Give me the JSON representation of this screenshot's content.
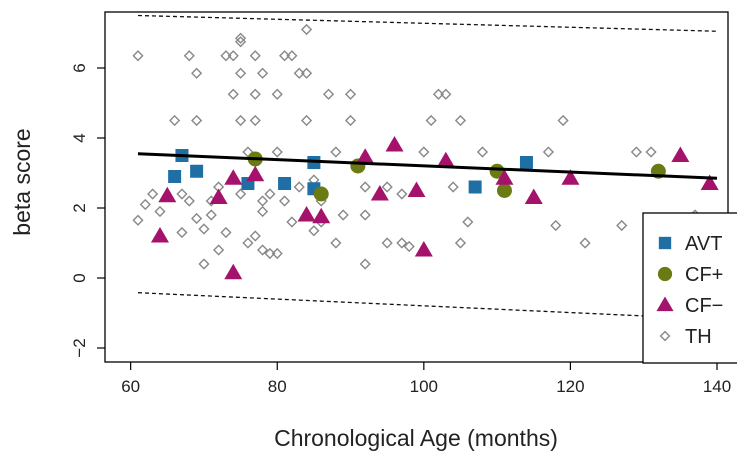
{
  "chart_data": {
    "type": "scatter",
    "xlabel": "Chronological Age (months)",
    "ylabel": "beta score",
    "xlim": [
      56.5,
      141.5
    ],
    "ylim": [
      -2.4,
      7.6
    ],
    "xticks": [
      60,
      80,
      100,
      120,
      140
    ],
    "yticks": [
      -2,
      0,
      2,
      4,
      6
    ],
    "legend_position": "bottom-right",
    "fit_line": {
      "x": [
        61,
        140
      ],
      "y": [
        3.55,
        2.85
      ]
    },
    "bound_upper": {
      "x": [
        61,
        140
      ],
      "y": [
        7.5,
        7.05
      ]
    },
    "bound_lower": {
      "x": [
        61,
        140
      ],
      "y": [
        -0.42,
        -1.18
      ]
    },
    "colors": {
      "AVT": "#1f6fa5",
      "CF+": "#6b7a12",
      "CF-": "#a5126b",
      "TH": "#888888"
    },
    "series": [
      {
        "name": "AVT",
        "marker": "square",
        "x": [
          66,
          67,
          69,
          76,
          81,
          85,
          85,
          107,
          114
        ],
        "y": [
          2.9,
          3.5,
          3.05,
          2.7,
          2.7,
          3.3,
          2.55,
          2.6,
          3.3
        ]
      },
      {
        "name": "CF+",
        "marker": "circle",
        "x": [
          77,
          86,
          91,
          110,
          111,
          132
        ],
        "y": [
          3.4,
          2.4,
          3.2,
          3.05,
          2.5,
          3.05
        ]
      },
      {
        "name": "CF−",
        "marker": "triangle",
        "x": [
          64,
          65,
          72,
          74,
          74,
          77,
          84,
          86,
          92,
          94,
          96,
          99,
          100,
          103,
          111,
          115,
          120,
          135,
          139
        ],
        "y": [
          1.2,
          2.35,
          2.3,
          2.85,
          0.15,
          2.95,
          1.8,
          1.75,
          3.45,
          2.4,
          3.8,
          2.5,
          0.8,
          3.35,
          2.85,
          2.3,
          2.85,
          3.5,
          2.7
        ]
      },
      {
        "name": "TH",
        "marker": "diamond",
        "x": [
          61,
          61,
          62,
          63,
          64,
          66,
          67,
          67,
          68,
          68,
          69,
          69,
          69,
          70,
          70,
          71,
          71,
          72,
          72,
          73,
          73,
          74,
          74,
          75,
          75,
          75,
          75,
          75,
          76,
          76,
          77,
          77,
          77,
          77,
          78,
          78,
          78,
          78,
          79,
          79,
          80,
          80,
          80,
          81,
          81,
          82,
          82,
          83,
          83,
          84,
          84,
          84,
          85,
          85,
          86,
          86,
          87,
          88,
          88,
          89,
          90,
          90,
          92,
          92,
          92,
          95,
          95,
          97,
          97,
          98,
          100,
          101,
          102,
          103,
          104,
          105,
          105,
          106,
          108,
          117,
          118,
          119,
          122,
          127,
          129,
          131,
          137
        ],
        "y": [
          6.35,
          1.65,
          2.1,
          2.4,
          1.9,
          4.5,
          2.4,
          1.3,
          2.2,
          6.35,
          1.7,
          4.5,
          5.85,
          1.4,
          0.4,
          1.8,
          2.2,
          0.8,
          2.6,
          6.35,
          1.3,
          6.35,
          5.25,
          6.85,
          6.75,
          5.85,
          4.5,
          2.4,
          3.6,
          1.0,
          6.35,
          5.25,
          4.5,
          1.2,
          2.2,
          5.85,
          1.9,
          0.8,
          2.4,
          0.7,
          3.6,
          5.25,
          0.7,
          2.2,
          6.35,
          6.35,
          1.6,
          5.85,
          2.6,
          7.1,
          5.85,
          4.5,
          2.8,
          1.35,
          1.6,
          2.2,
          5.25,
          1.0,
          3.6,
          1.8,
          5.25,
          4.5,
          0.4,
          1.8,
          2.6,
          1.0,
          2.6,
          1.0,
          2.4,
          0.9,
          3.6,
          4.5,
          5.25,
          5.25,
          2.6,
          4.5,
          1.0,
          1.6,
          3.6,
          3.6,
          1.5,
          4.5,
          1.0,
          1.5,
          3.6,
          3.6,
          1.8
        ]
      }
    ]
  }
}
